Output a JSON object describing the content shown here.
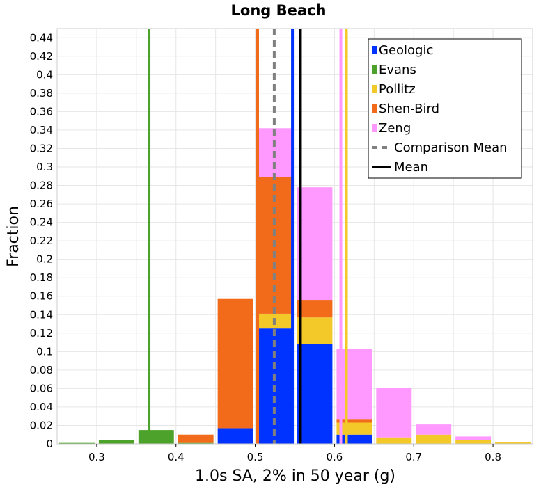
{
  "chart_data": {
    "type": "bar",
    "stacked": true,
    "title": "Long Beach",
    "xlabel": "1.0s SA, 2% in 50 year (g)",
    "ylabel": "Fraction",
    "xlim": [
      0.25,
      0.85
    ],
    "ylim": [
      0,
      0.45
    ],
    "bin_width": 0.05,
    "x_ticks": [
      "0.3",
      "0.4",
      "0.5",
      "0.6",
      "0.7",
      "0.8"
    ],
    "y_ticks": [
      "0",
      "0.02",
      "0.04",
      "0.06",
      "0.08",
      "0.1",
      "0.12",
      "0.14",
      "0.16",
      "0.18",
      "0.2",
      "0.22",
      "0.24",
      "0.26",
      "0.28",
      "0.3",
      "0.32",
      "0.34",
      "0.36",
      "0.38",
      "0.4",
      "0.42",
      "0.44"
    ],
    "grid": true,
    "legend_position": "top-right",
    "bins": [
      0.275,
      0.325,
      0.375,
      0.425,
      0.475,
      0.525,
      0.575,
      0.625,
      0.675,
      0.725,
      0.775,
      0.825
    ],
    "series": [
      {
        "name": "Geologic",
        "color": "#0033ff",
        "values": [
          0,
          0,
          0,
          0,
          0.017,
          0.125,
          0.108,
          0.01,
          0,
          0,
          0,
          0
        ]
      },
      {
        "name": "Evans",
        "color": "#4ca22a",
        "values": [
          0.001,
          0.004,
          0.015,
          0.001,
          0,
          0,
          0,
          0,
          0,
          0,
          0,
          0
        ]
      },
      {
        "name": "Pollitz",
        "color": "#f2c928",
        "values": [
          0,
          0,
          0,
          0,
          0,
          0.016,
          0.029,
          0.013,
          0.007,
          0.01,
          0.004,
          0.002
        ]
      },
      {
        "name": "Shen-Bird",
        "color": "#f26b1b",
        "values": [
          0,
          0,
          0,
          0.009,
          0.14,
          0.148,
          0.019,
          0.004,
          0,
          0,
          0,
          0
        ]
      },
      {
        "name": "Zeng",
        "color": "#ff99ff",
        "values": [
          0,
          0,
          0,
          0,
          0,
          0.053,
          0.122,
          0.076,
          0.054,
          0.011,
          0.004,
          0
        ]
      }
    ],
    "vertical_lines": [
      {
        "series": "Geologic",
        "x": 0.547,
        "color": "#0033ff",
        "style": "solid"
      },
      {
        "series": "Evans",
        "x": 0.366,
        "color": "#4ca22a",
        "style": "solid"
      },
      {
        "series": "Pollitz",
        "x": 0.615,
        "color": "#f2c928",
        "style": "solid"
      },
      {
        "series": "Shen-Bird",
        "x": 0.503,
        "color": "#f26b1b",
        "style": "solid"
      },
      {
        "series": "Zeng",
        "x": 0.608,
        "color": "#ff99ff",
        "style": "solid"
      },
      {
        "series": "Comparison Mean",
        "x": 0.524,
        "color": "#808080",
        "style": "dashed"
      },
      {
        "series": "Mean",
        "x": 0.557,
        "color": "#000000",
        "style": "solid"
      }
    ],
    "legend": [
      {
        "name": "Geologic",
        "color": "#0033ff",
        "kind": "box"
      },
      {
        "name": "Evans",
        "color": "#4ca22a",
        "kind": "box"
      },
      {
        "name": "Pollitz",
        "color": "#f2c928",
        "kind": "box"
      },
      {
        "name": "Shen-Bird",
        "color": "#f26b1b",
        "kind": "box"
      },
      {
        "name": "Zeng",
        "color": "#ff99ff",
        "kind": "box"
      },
      {
        "name": "Comparison Mean",
        "color": "#808080",
        "kind": "dashed"
      },
      {
        "name": "Mean",
        "color": "#000000",
        "kind": "line"
      }
    ]
  }
}
